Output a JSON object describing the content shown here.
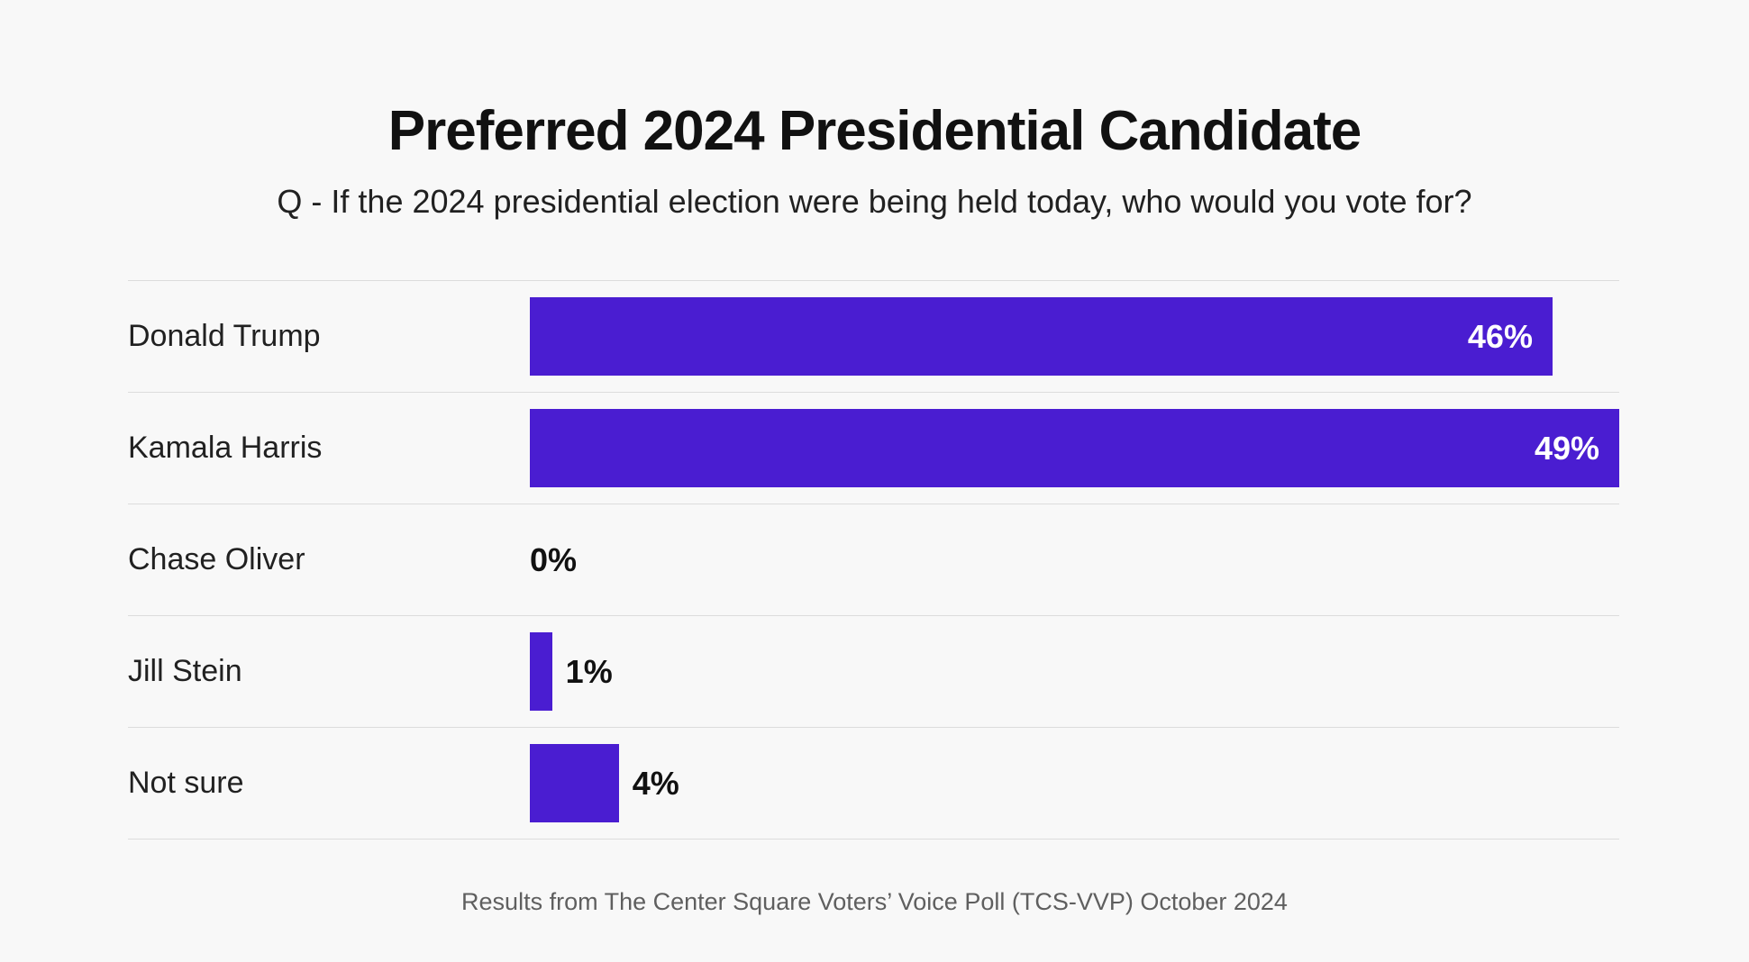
{
  "chart_data": {
    "type": "bar",
    "orientation": "horizontal",
    "title": "Preferred 2024 Presidential Candidate",
    "subtitle": "Q - If the 2024 presidential election were being held today, who would you vote for?",
    "footer_note": "Results from The Center Square Voters’ Voice Poll (TCS-VVP) October 2024",
    "categories": [
      "Donald Trump",
      "Kamala Harris",
      "Chase Oliver",
      "Jill Stein",
      "Not sure"
    ],
    "values": [
      46,
      49,
      0,
      1,
      4
    ],
    "value_labels": [
      "46%",
      "49%",
      "0%",
      "1%",
      "4%"
    ],
    "value_suffix": "%",
    "xlim": [
      0,
      49
    ],
    "grid": "horizontal row dividers only",
    "legend": "none",
    "layout_hints": {
      "bars_scaled_to_max_value": true,
      "large_value_labels_inside_bar_right_aligned": true,
      "small_value_labels_outside_right_of_bar": true
    }
  },
  "colors": {
    "background": "#f8f8f8",
    "bar": "#4a1dd1",
    "divider": "#dcdcdc",
    "title_text": "#111111",
    "label_text": "#212121",
    "inside_value_text": "#ffffff",
    "footer_text": "#5f5f5f"
  }
}
